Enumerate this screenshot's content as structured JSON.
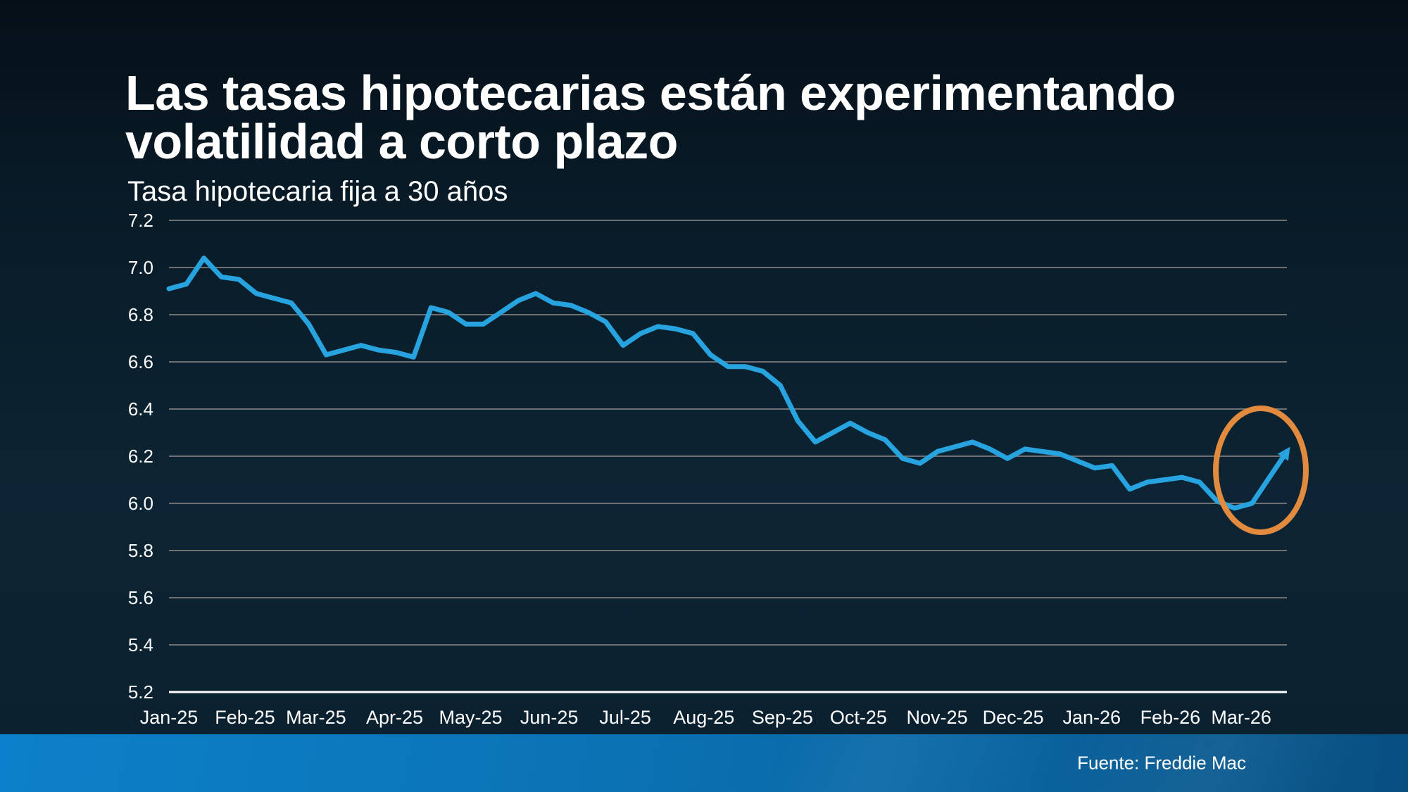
{
  "header": {
    "title_line1": "Las tasas hipotecarias están experimentando",
    "title_line2": "volatilidad a corto plazo",
    "subtitle": "Tasa hipotecaria fija a 30 años"
  },
  "footer": {
    "source": "Fuente: Freddie Mac"
  },
  "colors": {
    "background_top": "#050F18",
    "background_mid": "#0C2433",
    "text": "#FFFFFF",
    "line": "#27A3E0",
    "highlight_ellipse": "#E28A3E",
    "gridline": "#6E7074",
    "axis_line": "#FFFFFF",
    "footer_bar_left": "#0C80CA",
    "footer_bar_right": "#084F80"
  },
  "chart_data": {
    "type": "line",
    "title": "Las tasas hipotecarias están experimentando volatilidad a corto plazo",
    "subtitle": "Tasa hipotecaria fija a 30 años",
    "source": "Fuente: Freddie Mac",
    "frequency": "weekly",
    "unit": "percent",
    "grid": "horizontal",
    "legend": "none",
    "ylim": [
      5.2,
      7.2
    ],
    "y_ticks": [
      7.2,
      7.0,
      6.8,
      6.6,
      6.4,
      6.2,
      6.0,
      5.8,
      5.6,
      5.4,
      5.2
    ],
    "x_tick_labels": [
      "Jan-25",
      "Feb-25",
      "Mar-25",
      "Apr-25",
      "May-25",
      "Jun-25",
      "Jul-25",
      "Aug-25",
      "Sep-25",
      "Oct-25",
      "Nov-25",
      "Dec-25",
      "Jan-26",
      "Feb-26",
      "Mar-26"
    ],
    "series": [
      {
        "name": "Tasa hipotecaria fija a 30 años",
        "values": [
          6.91,
          6.93,
          7.04,
          6.96,
          6.95,
          6.89,
          6.87,
          6.85,
          6.76,
          6.63,
          6.65,
          6.67,
          6.65,
          6.64,
          6.62,
          6.83,
          6.81,
          6.76,
          6.76,
          6.81,
          6.86,
          6.89,
          6.85,
          6.84,
          6.81,
          6.77,
          6.67,
          6.72,
          6.75,
          6.74,
          6.72,
          6.63,
          6.58,
          6.58,
          6.56,
          6.5,
          6.35,
          6.26,
          6.3,
          6.34,
          6.3,
          6.27,
          6.19,
          6.17,
          6.22,
          6.24,
          6.26,
          6.23,
          6.19,
          6.23,
          6.22,
          6.21,
          6.18,
          6.15,
          6.16,
          6.06,
          6.09,
          6.1,
          6.11,
          6.09,
          6.01,
          5.98,
          6.0,
          6.11,
          6.22
        ]
      }
    ],
    "annotation": {
      "shape": "ellipse",
      "color": "#E28A3E",
      "purpose": "highlights the recent dip to ~5.98 and sharp rebound to ~6.22 at Mar-26"
    }
  }
}
